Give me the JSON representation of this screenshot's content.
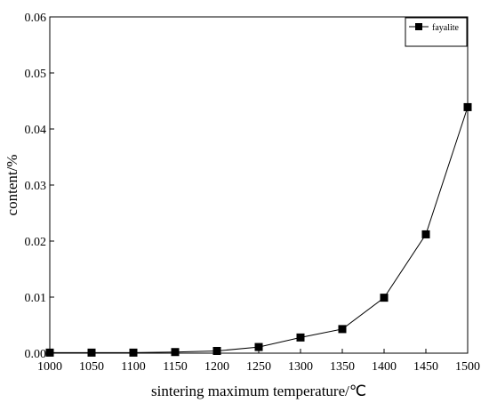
{
  "chart_data": {
    "type": "line",
    "title": "",
    "xlabel": "sintering maximum temperature/℃",
    "ylabel": "content/%",
    "xlim": [
      1000,
      1500
    ],
    "ylim": [
      0,
      0.06
    ],
    "x_ticks": [
      1000,
      1050,
      1100,
      1150,
      1200,
      1250,
      1300,
      1350,
      1400,
      1450,
      1500
    ],
    "y_ticks": [
      0.0,
      0.01,
      0.02,
      0.03,
      0.04,
      0.05,
      0.06
    ],
    "y_tick_labels": [
      "0.00",
      "0.01",
      "0.02",
      "0.03",
      "0.04",
      "0.05",
      "0.06"
    ],
    "grid": false,
    "legend_position": "top-right",
    "series": [
      {
        "name": "fayalite",
        "marker": "square",
        "color": "#000000",
        "x": [
          1000,
          1050,
          1100,
          1150,
          1200,
          1250,
          1300,
          1350,
          1400,
          1450,
          1500
        ],
        "y": [
          0.0001,
          0.0001,
          0.0001,
          0.0002,
          0.0004,
          0.0011,
          0.0028,
          0.0043,
          0.0099,
          0.0212,
          0.0439
        ]
      }
    ]
  }
}
